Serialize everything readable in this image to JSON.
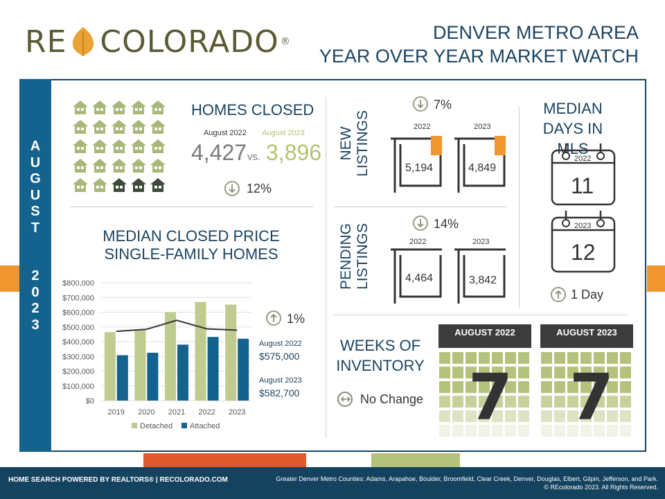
{
  "logo": {
    "left": "RE",
    "right": "COLORADO",
    "reg": "®"
  },
  "header": {
    "line1": "DENVER METRO AREA",
    "line2": "YEAR OVER YEAR MARKET WATCH"
  },
  "sidebar": {
    "month_letters": [
      "A",
      "U",
      "G",
      "U",
      "S",
      "T"
    ],
    "year_letters": [
      "2",
      "0",
      "2",
      "3"
    ]
  },
  "homes_closed": {
    "title": "HOMES CLOSED",
    "label_2022": "August 2022",
    "label_2023": "August 2023",
    "value_2022": "4,427",
    "vs": "vs.",
    "value_2023": "3,896",
    "change": "12%",
    "direction": "down"
  },
  "median_price": {
    "title_line1": "MEDIAN CLOSED PRICE",
    "title_line2": "SINGLE-FAMILY HOMES",
    "change": "1%",
    "direction": "up",
    "label_2022": "August 2022",
    "value_2022": "$575,000",
    "label_2023": "August 2023",
    "value_2023": "$582,700"
  },
  "chart_data": {
    "type": "bar",
    "categories": [
      "2019",
      "2020",
      "2021",
      "2022",
      "2023"
    ],
    "series": [
      {
        "name": "Detached",
        "values": [
          465000,
          478000,
          600000,
          670000,
          652000
        ],
        "color": "#bfcb8f"
      },
      {
        "name": "Attached",
        "values": [
          308000,
          325000,
          380000,
          432000,
          420000
        ],
        "color": "#14628e"
      }
    ],
    "line": {
      "values": [
        470000,
        484000,
        545000,
        487000,
        478000
      ],
      "color": "#333333"
    },
    "ylim": [
      0,
      800000
    ],
    "yticks": [
      "$0",
      "$100,000",
      "$200,000",
      "$300,000",
      "$400,000",
      "$500,000",
      "$600,000",
      "$700,000",
      "$800,000"
    ],
    "legend": "bottom"
  },
  "new_listings": {
    "title_line1": "NEW",
    "title_line2": "LISTINGS",
    "change": "7%",
    "direction": "down",
    "year_2022": "2022",
    "value_2022": "5,194",
    "year_2023": "2023",
    "value_2023": "4,849",
    "tag": "NEW"
  },
  "pending_listings": {
    "title_line1": "PENDING",
    "title_line2": "LISTINGS",
    "change": "14%",
    "direction": "down",
    "year_2022": "2022",
    "value_2022": "4,464",
    "year_2023": "2023",
    "value_2023": "3,842"
  },
  "days_in_mls": {
    "title_line1": "MEDIAN",
    "title_line2": "DAYS IN MLS",
    "year_2022": "2022",
    "value_2022": "11",
    "year_2023": "2023",
    "value_2023": "12",
    "change": "1 Day",
    "direction": "up"
  },
  "weeks_inventory": {
    "title_line1": "WEEKS OF",
    "title_line2": "INVENTORY",
    "change": "No Change",
    "label_2022": "AUGUST 2022",
    "value_2022": "7",
    "label_2023": "AUGUST 2023",
    "value_2023": "7"
  },
  "footer": {
    "left": "HOME SEARCH POWERED BY REALTORS®  |  RECOLORADO.COM",
    "right_line1": "Greater Denver Metro Counties: Adams, Arapahoe, Boulder, Broomfield, Clear Creek, Denver, Douglas, Elbert, Gilpin, Jefferson, and Park.",
    "right_line2": "© REcolorado 2023. All Rights Reserved."
  },
  "colors": {
    "navy": "#14425f",
    "blue": "#14628e",
    "green": "#b5c27b",
    "orange": "#f0962e",
    "red_orange": "#e25a2b"
  }
}
